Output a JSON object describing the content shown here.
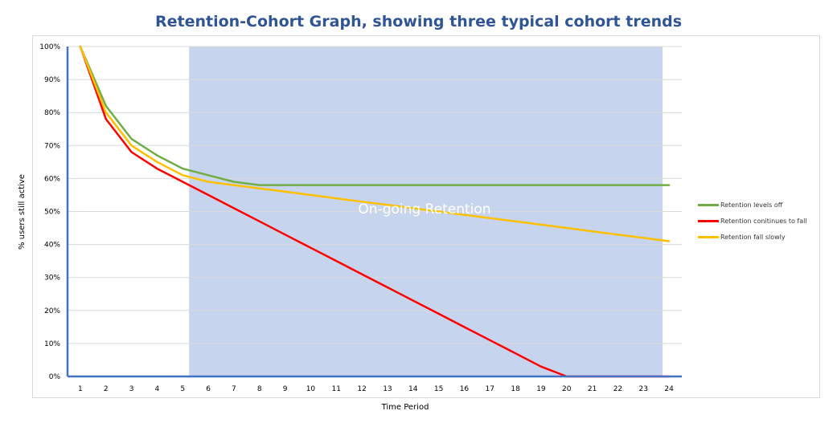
{
  "chart_data": {
    "type": "line",
    "title": "Retention-Cohort Graph, showing three typical cohort trends",
    "xlabel": "Time Period",
    "ylabel": "% users still active",
    "x": [
      1,
      2,
      3,
      4,
      5,
      6,
      7,
      8,
      9,
      10,
      11,
      12,
      13,
      14,
      15,
      16,
      17,
      18,
      19,
      20,
      21,
      22,
      23,
      24
    ],
    "y_ticks": [
      "0%",
      "10%",
      "20%",
      "30%",
      "40%",
      "50%",
      "60%",
      "70%",
      "80%",
      "90%",
      "100%"
    ],
    "ylim": [
      0,
      100
    ],
    "xlim": [
      0.5,
      24.5
    ],
    "grid": true,
    "legend_position": "right",
    "series": [
      {
        "name": "Retention levels off",
        "color": "#70ad47",
        "values": [
          100,
          82,
          72,
          67,
          63,
          61,
          59,
          58,
          58,
          58,
          58,
          58,
          58,
          58,
          58,
          58,
          58,
          58,
          58,
          58,
          58,
          58,
          58,
          58
        ]
      },
      {
        "name": "Retention conitinues to fall",
        "color": "#ff0000",
        "values": [
          100,
          78,
          68,
          63,
          59,
          55,
          51,
          47,
          43,
          39,
          35,
          31,
          27,
          23,
          19,
          15,
          11,
          7,
          3,
          0,
          0,
          0,
          0,
          0
        ]
      },
      {
        "name": "Retention fall slowly",
        "color": "#ffc000",
        "values": [
          100,
          80,
          70,
          65,
          61,
          59,
          58,
          57,
          56,
          55,
          54,
          53,
          52,
          51,
          50,
          49,
          48,
          47,
          46,
          45,
          44,
          43,
          42,
          41
        ]
      }
    ],
    "annotation": {
      "text": "On-going Retention",
      "x_range": [
        5.25,
        23.75
      ],
      "y_range": [
        0,
        100
      ],
      "color": "#8faadc"
    }
  }
}
